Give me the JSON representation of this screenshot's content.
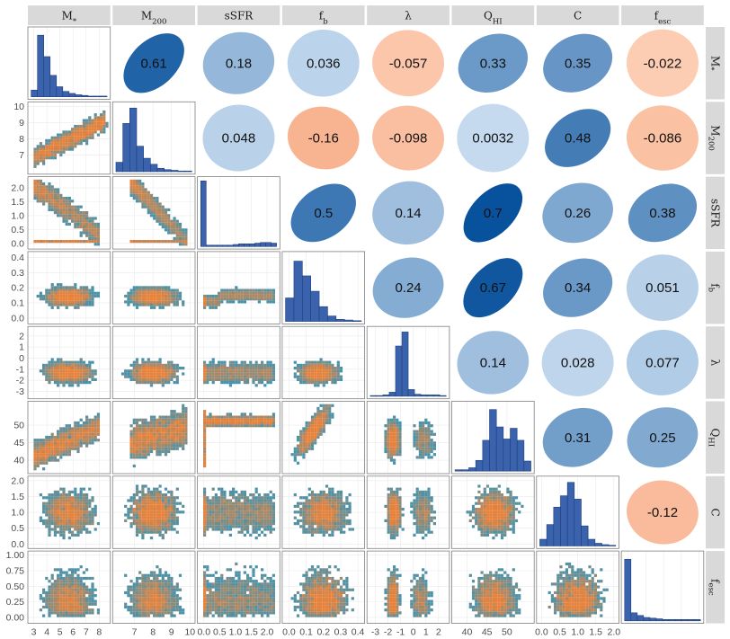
{
  "chart_data": {
    "type": "pairs-matrix",
    "variables": [
      {
        "key": "Mstar",
        "base": "M",
        "sub": "*"
      },
      {
        "key": "M200",
        "base": "M",
        "sub": "200"
      },
      {
        "key": "sSFR",
        "base": "sSFR",
        "sub": ""
      },
      {
        "key": "fb",
        "base": "f",
        "sub": "b"
      },
      {
        "key": "lambda",
        "base": "λ",
        "sub": ""
      },
      {
        "key": "QHI",
        "base": "Q",
        "sub": "HI"
      },
      {
        "key": "C",
        "base": "C",
        "sub": ""
      },
      {
        "key": "fesc",
        "base": "f",
        "sub": "esc"
      }
    ],
    "ranges": [
      [
        2.8,
        8.6
      ],
      [
        6.0,
        10.1
      ],
      [
        -0.1,
        2.3
      ],
      [
        -0.02,
        0.42
      ],
      [
        -3.4,
        2.6
      ],
      [
        37,
        56
      ],
      [
        -0.05,
        2.05
      ],
      [
        -0.05,
        1.02
      ]
    ],
    "ticks": [
      [
        3,
        4,
        5,
        6,
        7,
        8
      ],
      [
        7,
        8,
        9,
        10
      ],
      [
        0.0,
        0.5,
        1.0,
        1.5,
        2.0
      ],
      [
        0.0,
        0.1,
        0.2,
        0.3,
        0.4
      ],
      [
        -3,
        -2,
        -1,
        0,
        1,
        2
      ],
      [
        40,
        45,
        50
      ],
      [
        0.0,
        0.5,
        1.0,
        1.5,
        2.0
      ],
      [
        0.0,
        0.25,
        0.5,
        0.75,
        1.0
      ]
    ],
    "x_tick_labels": [
      [
        "3",
        "4",
        "5",
        "6",
        "7",
        "8"
      ],
      [
        "7",
        "8",
        "9",
        "10"
      ],
      [
        "0.0",
        "0.5",
        "1.0",
        "1.5",
        "2.0"
      ],
      [
        "0.0",
        "0.1",
        "0.2",
        "0.3",
        "0.4"
      ],
      [
        "-3",
        "-2",
        "-1",
        "0",
        "1",
        "2"
      ],
      [
        "40",
        "45",
        "50"
      ],
      [
        "0.0",
        "0.5",
        "1.0",
        "1.5",
        "2.0"
      ],
      []
    ],
    "y_tick_labels": [
      [],
      [
        "7",
        "8",
        "9",
        "10"
      ],
      [
        "0.0",
        "0.5",
        "1.0",
        "1.5",
        "2.0"
      ],
      [
        "0.0",
        "0.1",
        "0.2",
        "0.3",
        "0.4"
      ],
      [
        "-3",
        "-2",
        "-1",
        "0",
        "1",
        "2"
      ],
      [
        "40",
        "45",
        "50"
      ],
      [
        "0.0",
        "0.5",
        "1.0",
        "1.5",
        "2.0"
      ],
      [
        "0.00",
        "0.25",
        "0.50",
        "0.75",
        "1.00"
      ]
    ],
    "correlations": [
      {
        "row": 0,
        "col": 1,
        "value": 0.61,
        "label": "0.61"
      },
      {
        "row": 0,
        "col": 2,
        "value": 0.18,
        "label": "0.18"
      },
      {
        "row": 0,
        "col": 3,
        "value": 0.036,
        "label": "0.036"
      },
      {
        "row": 0,
        "col": 4,
        "value": -0.057,
        "label": "-0.057"
      },
      {
        "row": 0,
        "col": 5,
        "value": 0.33,
        "label": "0.33"
      },
      {
        "row": 0,
        "col": 6,
        "value": 0.35,
        "label": "0.35"
      },
      {
        "row": 0,
        "col": 7,
        "value": -0.022,
        "label": "-0.022"
      },
      {
        "row": 1,
        "col": 2,
        "value": 0.048,
        "label": "0.048"
      },
      {
        "row": 1,
        "col": 3,
        "value": -0.16,
        "label": "-0.16"
      },
      {
        "row": 1,
        "col": 4,
        "value": -0.098,
        "label": "-0.098"
      },
      {
        "row": 1,
        "col": 5,
        "value": 0.0032,
        "label": "0.0032"
      },
      {
        "row": 1,
        "col": 6,
        "value": 0.48,
        "label": "0.48"
      },
      {
        "row": 1,
        "col": 7,
        "value": -0.086,
        "label": "-0.086"
      },
      {
        "row": 2,
        "col": 3,
        "value": 0.5,
        "label": "0.5"
      },
      {
        "row": 2,
        "col": 4,
        "value": 0.14,
        "label": "0.14"
      },
      {
        "row": 2,
        "col": 5,
        "value": 0.7,
        "label": "0.7"
      },
      {
        "row": 2,
        "col": 6,
        "value": 0.26,
        "label": "0.26"
      },
      {
        "row": 2,
        "col": 7,
        "value": 0.38,
        "label": "0.38"
      },
      {
        "row": 3,
        "col": 4,
        "value": 0.24,
        "label": "0.24"
      },
      {
        "row": 3,
        "col": 5,
        "value": 0.67,
        "label": "0.67"
      },
      {
        "row": 3,
        "col": 6,
        "value": 0.34,
        "label": "0.34"
      },
      {
        "row": 3,
        "col": 7,
        "value": 0.051,
        "label": "0.051"
      },
      {
        "row": 4,
        "col": 5,
        "value": 0.14,
        "label": "0.14"
      },
      {
        "row": 4,
        "col": 6,
        "value": 0.028,
        "label": "0.028"
      },
      {
        "row": 4,
        "col": 7,
        "value": 0.077,
        "label": "0.077"
      },
      {
        "row": 5,
        "col": 6,
        "value": 0.31,
        "label": "0.31"
      },
      {
        "row": 5,
        "col": 7,
        "value": 0.25,
        "label": "0.25"
      },
      {
        "row": 6,
        "col": 7,
        "value": -0.12,
        "label": "-0.12"
      }
    ],
    "histograms": [
      [
        0.1,
        0.92,
        0.6,
        0.32,
        0.15,
        0.08,
        0.05,
        0.03,
        0.02,
        0.01,
        0.01,
        0.01
      ],
      [
        0.14,
        0.72,
        0.95,
        0.38,
        0.2,
        0.11,
        0.05,
        0.03,
        0.02,
        0.01,
        0.01
      ],
      [
        0.98,
        0.02,
        0.02,
        0.02,
        0.02,
        0.02,
        0.03,
        0.04,
        0.04,
        0.04,
        0.05,
        0.06,
        0.06,
        0.05
      ],
      [
        0.35,
        0.9,
        0.68,
        0.45,
        0.22,
        0.08,
        0.03,
        0.02,
        0.01
      ],
      [
        0.01,
        0.01,
        0.02,
        0.06,
        0.75,
        0.96,
        0.1,
        0.03,
        0.02,
        0.02,
        0.02,
        0.01
      ],
      [
        0.02,
        0.02,
        0.05,
        0.16,
        0.46,
        0.92,
        0.66,
        0.48,
        0.64,
        0.46,
        0.15
      ],
      [
        0.1,
        0.32,
        0.58,
        0.75,
        0.95,
        0.7,
        0.3,
        0.1,
        0.04,
        0.02,
        0.01
      ],
      [
        0.92,
        0.12,
        0.08,
        0.05,
        0.04,
        0.03,
        0.02,
        0.02,
        0.02,
        0.02,
        0.02,
        0.02
      ]
    ],
    "colors": {
      "strip": "#d9d9d9",
      "hist_fill": "#3a62ad",
      "scatter_sparse": "#1f97c9",
      "scatter_dense": "#e8823a",
      "positive_strong": "#08519c",
      "positive_weak": "#c6dbef",
      "negative_weak": "#fdd0b8",
      "negative_strong": "#e6550d"
    }
  }
}
